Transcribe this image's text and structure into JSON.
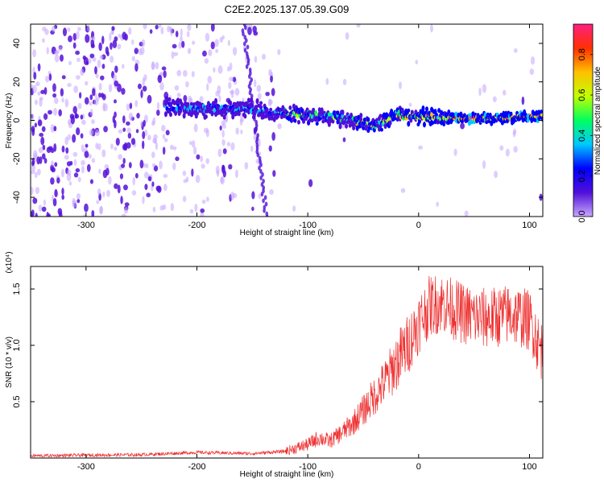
{
  "title": "C2E2.2025.137.05.39.G09",
  "chart_data": [
    {
      "type": "heatmap",
      "xlabel": "Height of straight line (km)",
      "ylabel": "Frequency (Hz)",
      "xlim": [
        -350,
        112
      ],
      "ylim": [
        -50,
        50
      ],
      "xticks": [
        -300,
        -200,
        -100,
        0,
        100
      ],
      "yticks": [
        -40,
        -20,
        0,
        20,
        40
      ],
      "colorbar": {
        "label": "Normalized spectral amplitude",
        "range": [
          0,
          0.95
        ],
        "ticks": [
          0.0,
          0.2,
          0.4,
          0.6,
          0.8
        ],
        "colors": [
          "#c8a8ff",
          "#5010d8",
          "#0000ff",
          "#00c8ff",
          "#00ff60",
          "#c0ff00",
          "#ffc000",
          "#ff3000",
          "#ff2080"
        ]
      },
      "trace": {
        "x": [
          -225,
          -200,
          -150,
          -130,
          -100,
          -80,
          -60,
          -40,
          -20,
          0,
          30,
          60,
          112
        ],
        "y": [
          7,
          6,
          6,
          4,
          3,
          2,
          0,
          -3,
          3,
          2,
          1,
          1,
          2
        ]
      }
    },
    {
      "type": "line",
      "xlabel": "Height of straight line (km)",
      "ylabel": "SNR (10 * v/v)",
      "y_multiplier": "(x10⁴)",
      "xlim": [
        -350,
        112
      ],
      "ylim": [
        0,
        1.7
      ],
      "xticks": [
        -300,
        -200,
        -100,
        0,
        100
      ],
      "yticks": [
        0.5,
        1.0,
        1.5
      ],
      "ytick_labels": [
        "0.5",
        "1.0",
        "1.5"
      ],
      "color": "#ee3030",
      "series": [
        {
          "x": [
            -350,
            -250,
            -200,
            -150,
            -120,
            -100,
            -90,
            -80,
            -70,
            -60,
            -50,
            -40,
            -30,
            -20,
            -10,
            0,
            10,
            20,
            30,
            40,
            50,
            60,
            70,
            80,
            90,
            100,
            105,
            108,
            112
          ],
          "y": [
            0.02,
            0.03,
            0.05,
            0.04,
            0.06,
            0.12,
            0.18,
            0.15,
            0.22,
            0.3,
            0.42,
            0.55,
            0.68,
            0.85,
            1.0,
            1.2,
            1.35,
            1.38,
            1.33,
            1.28,
            1.25,
            1.24,
            1.25,
            1.27,
            1.26,
            1.22,
            1.12,
            1.0,
            0.95
          ]
        }
      ]
    }
  ]
}
